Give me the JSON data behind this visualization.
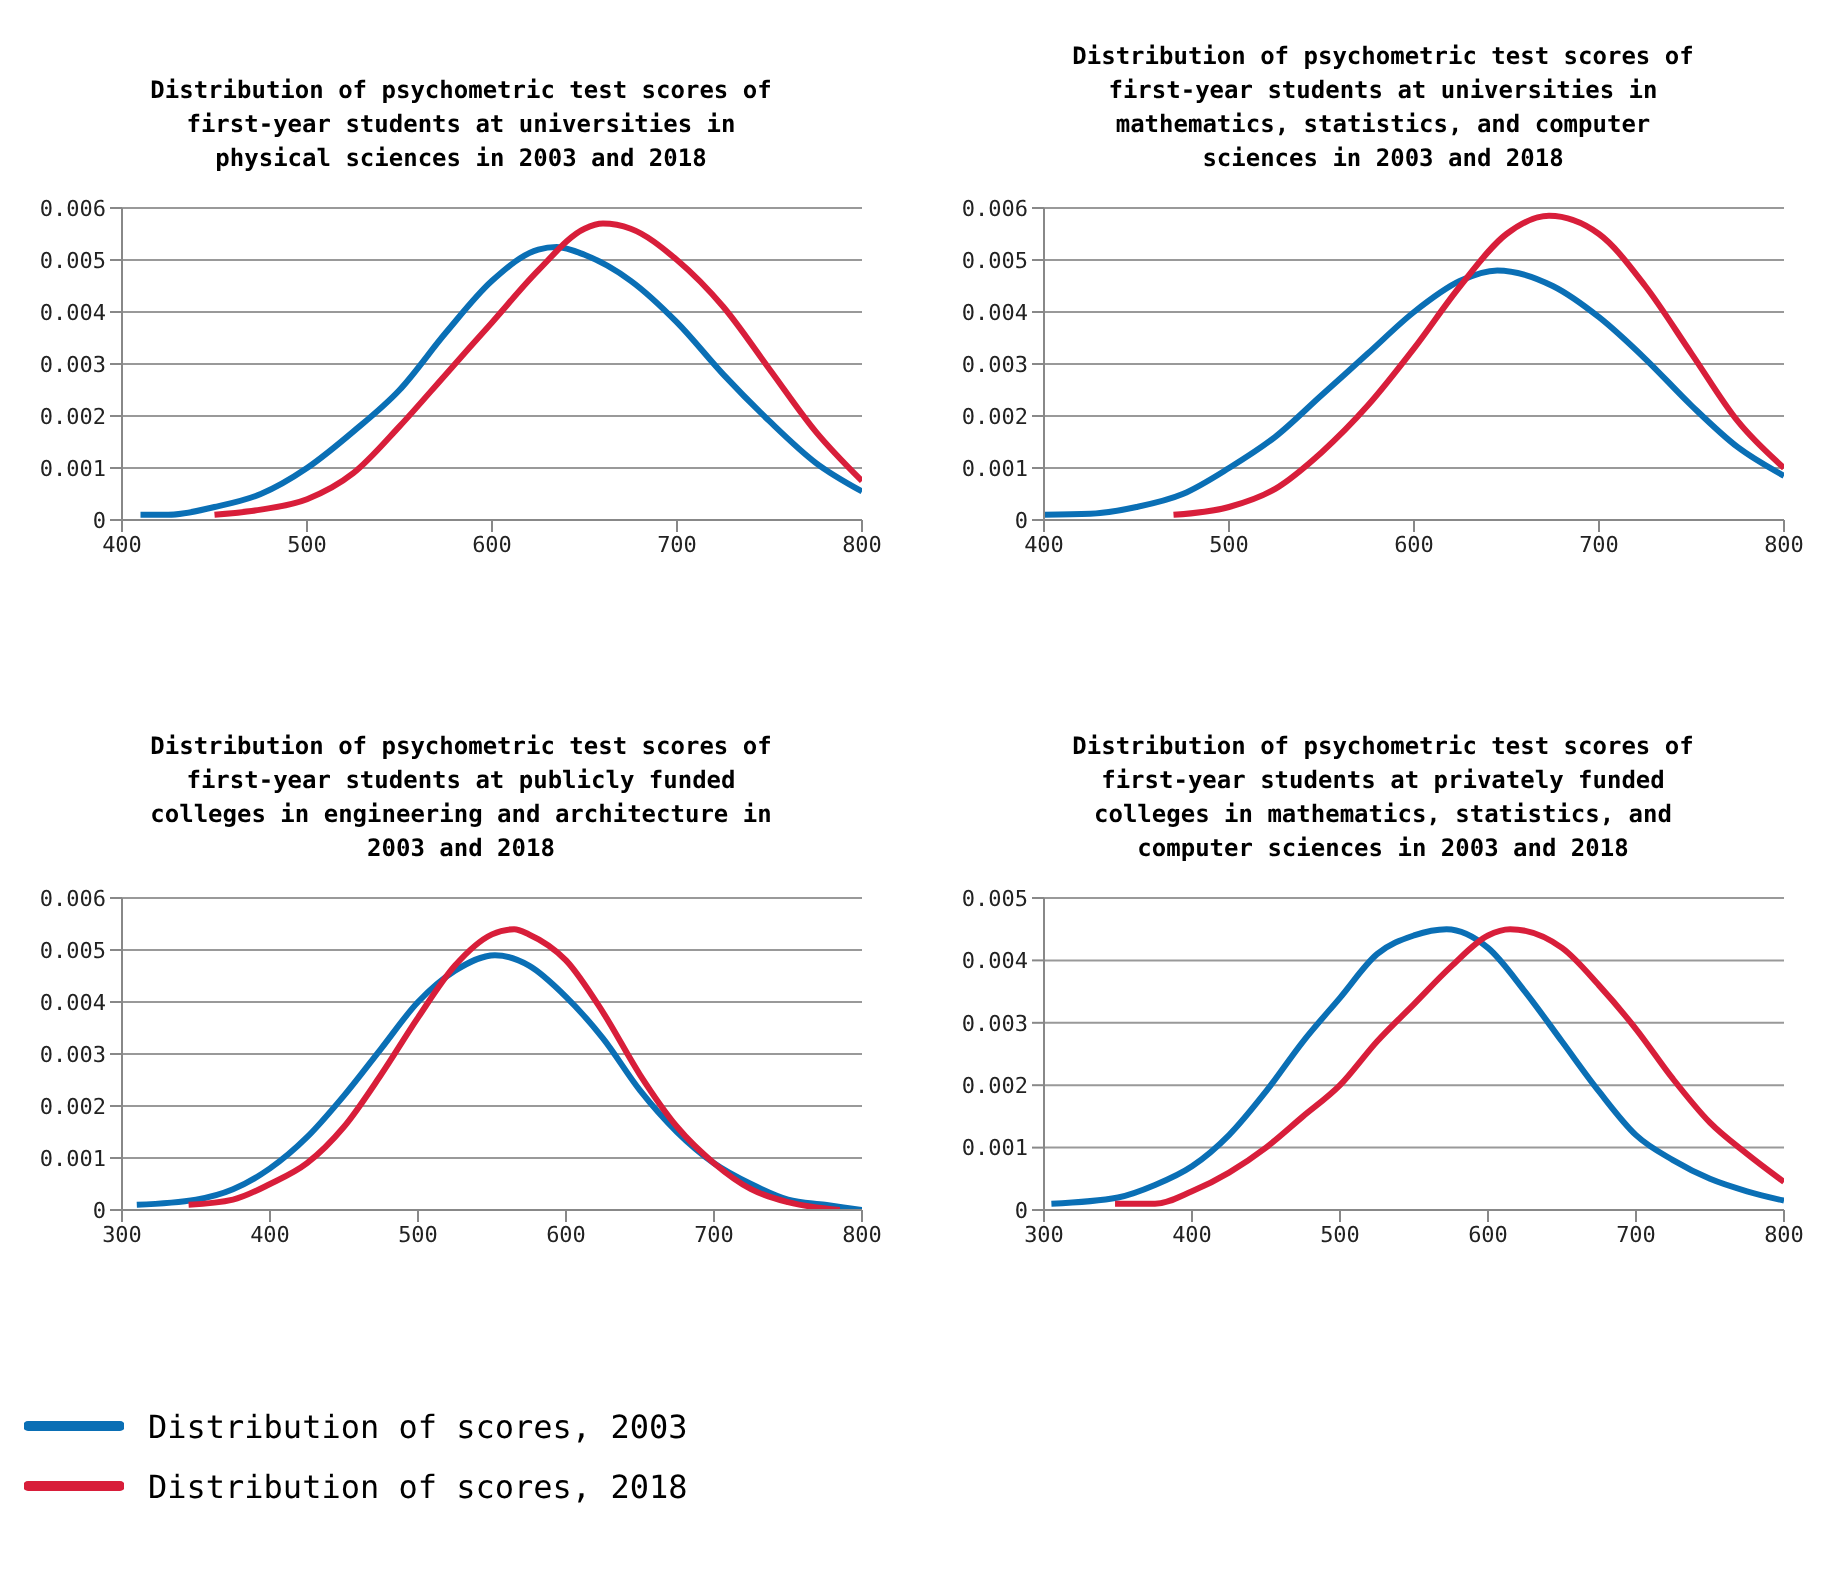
{
  "chart_data": [
    {
      "type": "line",
      "title": "Distribution of psychometric test scores of first-year students at universities in physical sciences in 2003 and 2018",
      "xlim": [
        400,
        800
      ],
      "xticks": [
        400,
        500,
        600,
        700,
        800
      ],
      "ylim": [
        0,
        0.006
      ],
      "yticks": [
        0,
        0.001,
        0.002,
        0.003,
        0.004,
        0.005,
        0.006
      ],
      "grid": "y",
      "marker": "none",
      "legend": false,
      "series": [
        {
          "color": "#0a6fb5",
          "x": [
            410,
            425,
            450,
            475,
            500,
            525,
            550,
            575,
            600,
            625,
            635,
            650,
            675,
            700,
            725,
            750,
            775,
            800
          ],
          "values": [
            0.0001,
            0.0001,
            0.00025,
            0.0005,
            0.001,
            0.0017,
            0.0025,
            0.0036,
            0.0046,
            0.0052,
            0.00525,
            0.0051,
            0.0046,
            0.0038,
            0.0028,
            0.0019,
            0.0011,
            0.00055
          ]
        },
        {
          "color": "#d81e3a",
          "x": [
            450,
            475,
            500,
            525,
            550,
            575,
            600,
            625,
            650,
            660,
            675,
            700,
            725,
            750,
            775,
            800
          ],
          "values": [
            0.0001,
            0.0002,
            0.0004,
            0.0009,
            0.0018,
            0.0028,
            0.0038,
            0.0048,
            0.0056,
            0.0057,
            0.0056,
            0.005,
            0.0041,
            0.0029,
            0.0017,
            0.00075
          ]
        }
      ]
    },
    {
      "type": "line",
      "title": "Distribution of psychometric test scores of first-year students at universities in mathematics, statistics, and computer sciences in 2003 and 2018",
      "xlim": [
        400,
        800
      ],
      "xticks": [
        400,
        500,
        600,
        700,
        800
      ],
      "ylim": [
        0,
        0.006
      ],
      "yticks": [
        0,
        0.001,
        0.002,
        0.003,
        0.004,
        0.005,
        0.006
      ],
      "grid": "y",
      "marker": "none",
      "legend": false,
      "series": [
        {
          "color": "#0a6fb5",
          "x": [
            400,
            425,
            450,
            475,
            500,
            525,
            550,
            575,
            600,
            625,
            645,
            675,
            700,
            725,
            750,
            775,
            800
          ],
          "values": [
            0.0001,
            0.00012,
            0.00025,
            0.0005,
            0.001,
            0.0016,
            0.0024,
            0.0032,
            0.004,
            0.0046,
            0.0048,
            0.0045,
            0.0039,
            0.0031,
            0.0022,
            0.0014,
            0.00085
          ]
        },
        {
          "color": "#d81e3a",
          "x": [
            470,
            500,
            525,
            550,
            575,
            600,
            625,
            650,
            673,
            700,
            725,
            750,
            775,
            800
          ],
          "values": [
            0.0001,
            0.00025,
            0.0006,
            0.0013,
            0.0022,
            0.0033,
            0.0045,
            0.0055,
            0.00585,
            0.0055,
            0.0045,
            0.0032,
            0.0019,
            0.001
          ]
        }
      ]
    },
    {
      "type": "line",
      "title": "Distribution of psychometric test scores of first-year students at publicly funded colleges in engineering and architecture in 2003 and 2018",
      "xlim": [
        300,
        800
      ],
      "xticks": [
        300,
        400,
        500,
        600,
        700,
        800
      ],
      "ylim": [
        0,
        0.006
      ],
      "yticks": [
        0,
        0.001,
        0.002,
        0.003,
        0.004,
        0.005,
        0.006
      ],
      "grid": "y",
      "marker": "none",
      "legend": false,
      "series": [
        {
          "color": "#0a6fb5",
          "x": [
            310,
            350,
            375,
            400,
            425,
            450,
            475,
            500,
            525,
            552,
            575,
            600,
            625,
            650,
            675,
            700,
            725,
            750,
            775,
            800
          ],
          "values": [
            0.0001,
            0.0002,
            0.0004,
            0.0008,
            0.0014,
            0.0022,
            0.0031,
            0.004,
            0.0046,
            0.0049,
            0.0047,
            0.0041,
            0.0033,
            0.0023,
            0.0015,
            0.0009,
            0.0005,
            0.0002,
            0.0001,
            0
          ]
        },
        {
          "color": "#d81e3a",
          "x": [
            345,
            375,
            400,
            425,
            450,
            475,
            500,
            525,
            550,
            565,
            575,
            600,
            625,
            650,
            675,
            700,
            725,
            750,
            785
          ],
          "values": [
            0.0001,
            0.0002,
            0.0005,
            0.0009,
            0.0016,
            0.0026,
            0.0037,
            0.0047,
            0.0053,
            0.0054,
            0.0053,
            0.0048,
            0.0038,
            0.0026,
            0.0016,
            0.0009,
            0.0004,
            0.00015,
            0
          ]
        }
      ]
    },
    {
      "type": "line",
      "title": "Distribution of psychometric test scores of first-year students at privately funded colleges in mathematics, statistics, and computer sciences in 2003 and 2018",
      "xlim": [
        300,
        800
      ],
      "xticks": [
        300,
        400,
        500,
        600,
        700,
        800
      ],
      "ylim": [
        0,
        0.005
      ],
      "yticks": [
        0,
        0.001,
        0.002,
        0.003,
        0.004,
        0.005
      ],
      "grid": "y",
      "marker": "none",
      "legend": "bottom",
      "series": [
        {
          "name": "Distribution of scores, 2003",
          "color": "#0a6fb5",
          "x": [
            305,
            350,
            375,
            400,
            425,
            450,
            475,
            500,
            525,
            550,
            572,
            600,
            625,
            650,
            675,
            700,
            725,
            750,
            775,
            800
          ],
          "values": [
            0.0001,
            0.0002,
            0.0004,
            0.0007,
            0.0012,
            0.0019,
            0.0027,
            0.0034,
            0.0041,
            0.0044,
            0.0045,
            0.0042,
            0.0035,
            0.0027,
            0.0019,
            0.0012,
            0.0008,
            0.0005,
            0.0003,
            0.00015
          ]
        },
        {
          "name": "Distribution of scores, 2018",
          "color": "#d81e3a",
          "x": [
            348,
            375,
            400,
            425,
            450,
            475,
            500,
            525,
            550,
            575,
            600,
            615,
            650,
            675,
            700,
            725,
            750,
            775,
            800
          ],
          "values": [
            0.0001,
            0.0001,
            0.0003,
            0.0006,
            0.001,
            0.0015,
            0.002,
            0.0027,
            0.0033,
            0.0039,
            0.0044,
            0.0045,
            0.0042,
            0.0036,
            0.0029,
            0.0021,
            0.0014,
            0.0009,
            0.00045
          ]
        }
      ]
    }
  ]
}
